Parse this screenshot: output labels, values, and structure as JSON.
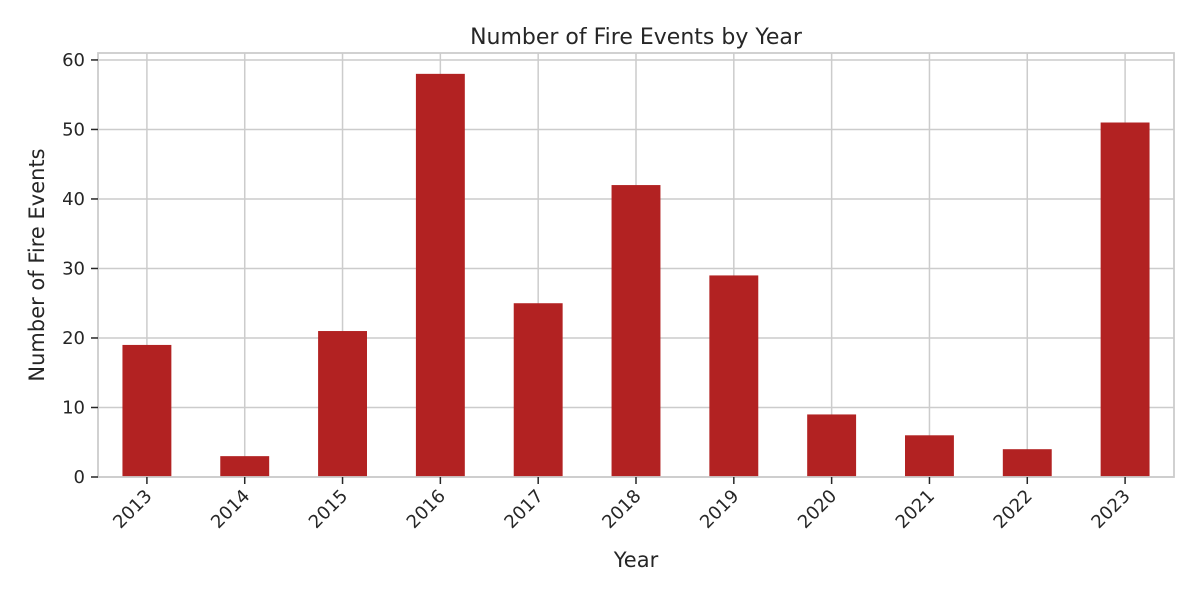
{
  "chart_data": {
    "type": "bar",
    "title": "Number of Fire Events by Year",
    "xlabel": "Year",
    "ylabel": "Number of Fire Events",
    "categories": [
      "2013",
      "2014",
      "2015",
      "2016",
      "2017",
      "2018",
      "2019",
      "2020",
      "2021",
      "2022",
      "2023"
    ],
    "values": [
      19,
      3,
      21,
      58,
      25,
      42,
      29,
      9,
      6,
      4,
      51
    ],
    "ylim": [
      0,
      61
    ],
    "yticks": [
      0,
      10,
      20,
      30,
      40,
      50,
      60
    ],
    "bar_color": "#b22222",
    "grid": true,
    "legend": "none"
  }
}
